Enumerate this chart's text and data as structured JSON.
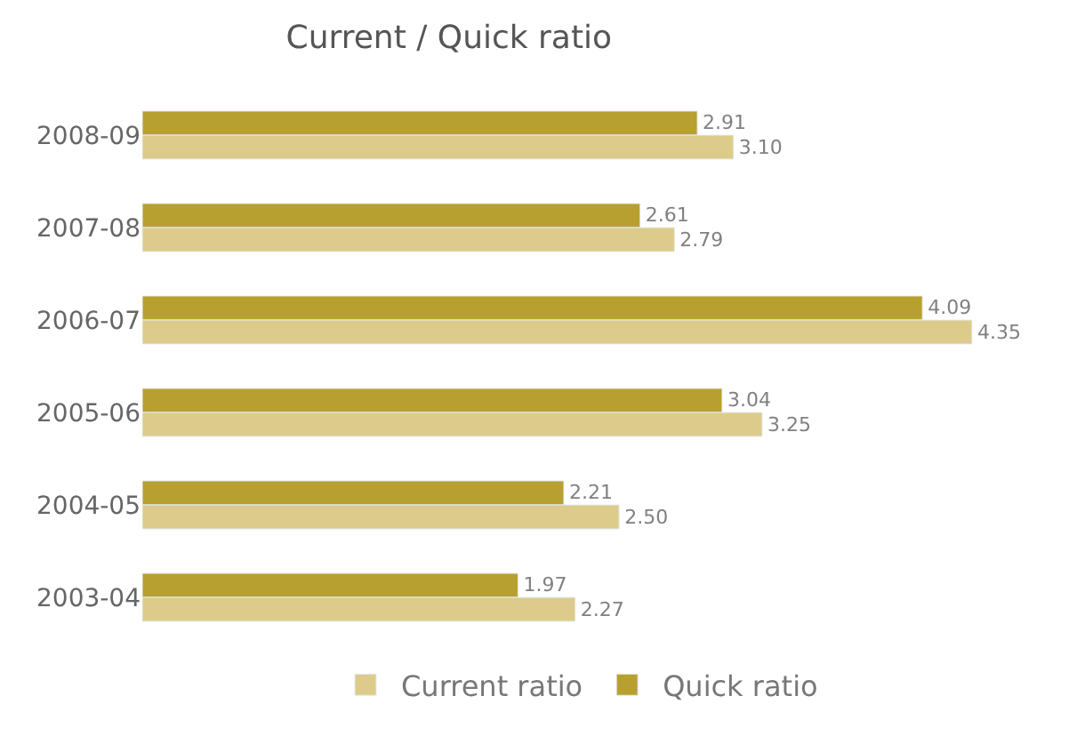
{
  "chart_data": {
    "type": "bar",
    "orientation": "horizontal",
    "title": "Current / Quick ratio",
    "categories": [
      "2008-09",
      "2007-08",
      "2006-07",
      "2005-06",
      "2004-05",
      "2003-04"
    ],
    "series": [
      {
        "name": "Current ratio",
        "color": "#dccb8a",
        "values": [
          3.1,
          2.79,
          4.35,
          3.25,
          2.5,
          2.27
        ],
        "value_labels": [
          "3.10",
          "2.79",
          "4.35",
          "3.25",
          "2.50",
          "2.27"
        ]
      },
      {
        "name": "Quick ratio",
        "color": "#b8a030",
        "values": [
          2.91,
          2.61,
          4.09,
          3.04,
          2.21,
          1.97
        ],
        "value_labels": [
          "2.91",
          "2.61",
          "4.09",
          "3.04",
          "2.21",
          "1.97"
        ]
      }
    ],
    "legend": "bottom",
    "tick_labels": "y"
  }
}
